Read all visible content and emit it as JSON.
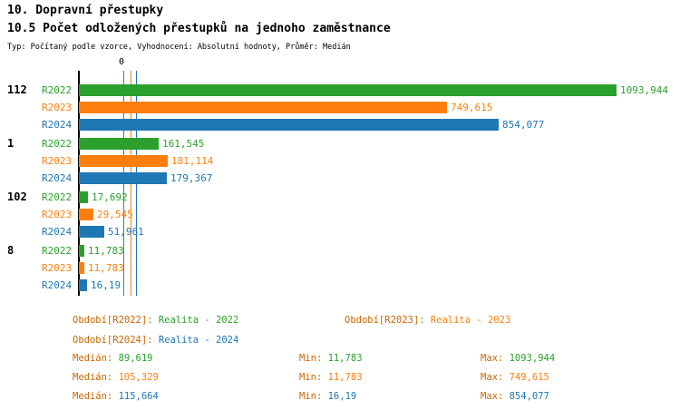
{
  "colors": {
    "series": [
      "#2CA02C",
      "#FF7F0E",
      "#1F77B4"
    ],
    "label_prefix": "#CC6600",
    "axis": "#000000"
  },
  "chart_data": {
    "type": "bar",
    "orientation": "horizontal",
    "title": "10. Dopravní přestupky",
    "subtitle": "10.5 Počet odložených přestupků na jednoho zaměstnance",
    "meta": "Typ: Počítaný podle vzorce, Vyhodnocení: Absolutní hodnoty, Průměr: Medián",
    "x_axis": {
      "zero_label": "0",
      "xlim": [
        0,
        1130
      ],
      "grid": false
    },
    "series_names": [
      "R2022",
      "R2023",
      "R2024"
    ],
    "groups": [
      {
        "label": "112",
        "rows": [
          {
            "series": "R2022",
            "value": 1093.944,
            "value_label": "1093,944"
          },
          {
            "series": "R2023",
            "value": 749.615,
            "value_label": "749,615"
          },
          {
            "series": "R2024",
            "value": 854.077,
            "value_label": "854,077"
          }
        ]
      },
      {
        "label": "1",
        "rows": [
          {
            "series": "R2022",
            "value": 161.545,
            "value_label": "161,545"
          },
          {
            "series": "R2023",
            "value": 181.114,
            "value_label": "181,114"
          },
          {
            "series": "R2024",
            "value": 179.367,
            "value_label": "179,367"
          }
        ]
      },
      {
        "label": "102",
        "rows": [
          {
            "series": "R2022",
            "value": 17.692,
            "value_label": "17,692"
          },
          {
            "series": "R2023",
            "value": 29.545,
            "value_label": "29,545"
          },
          {
            "series": "R2024",
            "value": 51.961,
            "value_label": "51,961"
          }
        ]
      },
      {
        "label": "8",
        "rows": [
          {
            "series": "R2022",
            "value": 11.783,
            "value_label": "11,783"
          },
          {
            "series": "R2023",
            "value": 11.783,
            "value_label": "11,783"
          },
          {
            "series": "R2024",
            "value": 16.19,
            "value_label": "16,19"
          }
        ]
      }
    ],
    "median_lines": [
      {
        "series": "R2022",
        "value": 89.619,
        "value_label": "89,619"
      },
      {
        "series": "R2023",
        "value": 105.329,
        "value_label": "105,329"
      },
      {
        "series": "R2024",
        "value": 115.664,
        "value_label": "115,664"
      }
    ],
    "legend": [
      {
        "label": "Období[R2022]:",
        "value": "Realita - 2022",
        "series": 0
      },
      {
        "label": "Období[R2023]:",
        "value": "Realita - 2023",
        "series": 1
      },
      {
        "label": "Období[R2024]:",
        "value": "Realita - 2024",
        "series": 2
      }
    ],
    "stats": [
      {
        "median_label": "Medián:",
        "median": "89,619",
        "min_label": "Min:",
        "min": "11,783",
        "max_label": "Max:",
        "max": "1093,944"
      },
      {
        "median_label": "Medián:",
        "median": "105,329",
        "min_label": "Min:",
        "min": "11,783",
        "max_label": "Max:",
        "max": "749,615"
      },
      {
        "median_label": "Medián:",
        "median": "115,664",
        "min_label": "Min:",
        "min": "16,19",
        "max_label": "Max:",
        "max": "854,077"
      }
    ]
  }
}
